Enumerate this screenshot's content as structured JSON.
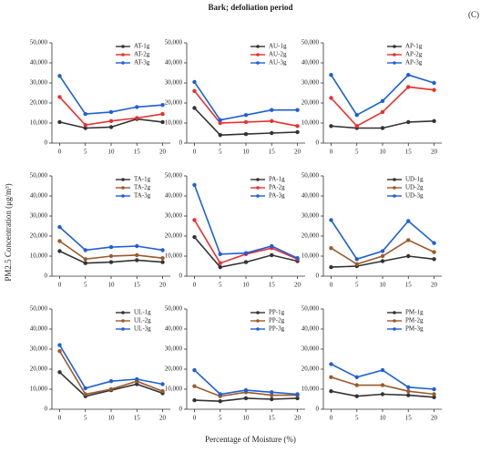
{
  "title": "Bark; defoliation period",
  "panel_label": "(C)",
  "y_label": "PM2.5 Concentration (μg/m³)",
  "x_label": "Percentage of Moisture (%)",
  "chart_data": [
    {
      "type": "line",
      "x": [
        0,
        5,
        10,
        15,
        20
      ],
      "xlim": [
        -1.5,
        21.5
      ],
      "xticks": [
        0,
        5,
        10,
        15,
        20
      ],
      "ylim": [
        0,
        50000
      ],
      "yticks": [
        0,
        {
          "value": 10000,
          "label": "10,000"
        },
        {
          "value": 20000,
          "label": "20,000"
        },
        {
          "value": 30000,
          "label": "30,000"
        },
        {
          "value": 40000,
          "label": "40,000"
        },
        {
          "value": 50000,
          "label": "50,000"
        }
      ],
      "series": [
        {
          "name": "AT-1g",
          "color": "#333333",
          "values": [
            10500,
            7500,
            8000,
            12000,
            10500
          ]
        },
        {
          "name": "AT-2g",
          "color": "#e8312f",
          "values": [
            23000,
            9000,
            11000,
            12500,
            14500
          ]
        },
        {
          "name": "AT-3g",
          "color": "#1f5fd6",
          "values": [
            33500,
            14500,
            15500,
            18000,
            19000
          ]
        }
      ]
    },
    {
      "type": "line",
      "x": [
        0,
        5,
        10,
        15,
        20
      ],
      "xlim": [
        -1.5,
        21.5
      ],
      "xticks": [
        0,
        5,
        10,
        15,
        20
      ],
      "ylim": [
        0,
        50000
      ],
      "yticks": [
        0,
        {
          "value": 10000,
          "label": "10,000"
        },
        {
          "value": 20000,
          "label": "20,000"
        },
        {
          "value": 30000,
          "label": "30,000"
        },
        {
          "value": 40000,
          "label": "40,000"
        },
        {
          "value": 50000,
          "label": "50,000"
        }
      ],
      "series": [
        {
          "name": "AU-1g",
          "color": "#333333",
          "values": [
            17500,
            4000,
            4500,
            5000,
            5500
          ]
        },
        {
          "name": "AU-2g",
          "color": "#e8312f",
          "values": [
            26000,
            10000,
            10500,
            11000,
            8500
          ]
        },
        {
          "name": "AU-3g",
          "color": "#1f5fd6",
          "values": [
            30500,
            11500,
            14000,
            16500,
            16500
          ]
        }
      ]
    },
    {
      "type": "line",
      "x": [
        0,
        5,
        10,
        15,
        20
      ],
      "xlim": [
        -1.5,
        21.5
      ],
      "xticks": [
        0,
        5,
        10,
        15,
        20
      ],
      "ylim": [
        0,
        50000
      ],
      "yticks": [
        0,
        {
          "value": 10000,
          "label": "10,000"
        },
        {
          "value": 20000,
          "label": "20,000"
        },
        {
          "value": 30000,
          "label": "30,000"
        },
        {
          "value": 40000,
          "label": "40,000"
        },
        {
          "value": 50000,
          "label": "50,000"
        }
      ],
      "series": [
        {
          "name": "AP-1g",
          "color": "#333333",
          "values": [
            8500,
            7500,
            7500,
            10500,
            11000
          ]
        },
        {
          "name": "AP-2g",
          "color": "#e8312f",
          "values": [
            22500,
            8500,
            15500,
            28000,
            26500
          ]
        },
        {
          "name": "AP-3g",
          "color": "#1f5fd6",
          "values": [
            34000,
            14000,
            21000,
            34000,
            30000
          ]
        }
      ]
    },
    {
      "type": "line",
      "x": [
        0,
        5,
        10,
        15,
        20
      ],
      "xlim": [
        -1.5,
        21.5
      ],
      "xticks": [
        0,
        5,
        10,
        15,
        20
      ],
      "ylim": [
        0,
        50000
      ],
      "yticks": [
        0,
        {
          "value": 10000,
          "label": "10,000"
        },
        {
          "value": 20000,
          "label": "20,000"
        },
        {
          "value": 30000,
          "label": "30,000"
        },
        {
          "value": 40000,
          "label": "40,000"
        },
        {
          "value": 50000,
          "label": "50,000"
        }
      ],
      "series": [
        {
          "name": "TA-1g",
          "color": "#333333",
          "values": [
            12500,
            6500,
            7000,
            8000,
            7000
          ]
        },
        {
          "name": "TA-2g",
          "color": "#9c5a2a",
          "values": [
            17500,
            8500,
            10000,
            10500,
            9000
          ]
        },
        {
          "name": "TA-3g",
          "color": "#1f5fd6",
          "values": [
            24500,
            13000,
            14500,
            15000,
            13000
          ]
        }
      ]
    },
    {
      "type": "line",
      "x": [
        0,
        5,
        10,
        15,
        20
      ],
      "xlim": [
        -1.5,
        21.5
      ],
      "xticks": [
        0,
        5,
        10,
        15,
        20
      ],
      "ylim": [
        0,
        50000
      ],
      "yticks": [
        0,
        {
          "value": 10000,
          "label": "10,000"
        },
        {
          "value": 20000,
          "label": "20,000"
        },
        {
          "value": 30000,
          "label": "30,000"
        },
        {
          "value": 40000,
          "label": "40,000"
        },
        {
          "value": 50000,
          "label": "50,000"
        }
      ],
      "series": [
        {
          "name": "PA-1g",
          "color": "#333333",
          "values": [
            19500,
            4500,
            7000,
            10500,
            7500
          ]
        },
        {
          "name": "PA-2g",
          "color": "#e8312f",
          "values": [
            28000,
            6500,
            11000,
            14000,
            8500
          ]
        },
        {
          "name": "PA-3g",
          "color": "#1f5fd6",
          "values": [
            45500,
            11000,
            11500,
            15000,
            9000
          ]
        }
      ]
    },
    {
      "type": "line",
      "x": [
        0,
        5,
        10,
        15,
        20
      ],
      "xlim": [
        -1.5,
        21.5
      ],
      "xticks": [
        0,
        5,
        10,
        15,
        20
      ],
      "ylim": [
        0,
        50000
      ],
      "yticks": [
        0,
        {
          "value": 10000,
          "label": "10,000"
        },
        {
          "value": 20000,
          "label": "20,000"
        },
        {
          "value": 30000,
          "label": "30,000"
        },
        {
          "value": 40000,
          "label": "40,000"
        },
        {
          "value": 50000,
          "label": "50,000"
        }
      ],
      "series": [
        {
          "name": "UD-1g",
          "color": "#333333",
          "values": [
            4500,
            5000,
            7500,
            10000,
            8500
          ]
        },
        {
          "name": "UD-2g",
          "color": "#9c5a2a",
          "values": [
            14000,
            6000,
            10000,
            18000,
            12000
          ]
        },
        {
          "name": "UD-3g",
          "color": "#1f5fd6",
          "values": [
            28000,
            8500,
            12500,
            27500,
            16500
          ]
        }
      ]
    },
    {
      "type": "line",
      "x": [
        0,
        5,
        10,
        15,
        20
      ],
      "xlim": [
        -1.5,
        21.5
      ],
      "xticks": [
        0,
        5,
        10,
        15,
        20
      ],
      "ylim": [
        0,
        50000
      ],
      "yticks": [
        0,
        {
          "value": 10000,
          "label": "10,000"
        },
        {
          "value": 20000,
          "label": "20,000"
        },
        {
          "value": 30000,
          "label": "30,000"
        },
        {
          "value": 40000,
          "label": "40,000"
        },
        {
          "value": 50000,
          "label": "50,000"
        }
      ],
      "series": [
        {
          "name": "UL-1g",
          "color": "#333333",
          "values": [
            18500,
            6500,
            9500,
            12500,
            8000
          ]
        },
        {
          "name": "UL-2g",
          "color": "#9c5a2a",
          "values": [
            29000,
            7500,
            10000,
            14000,
            9000
          ]
        },
        {
          "name": "UL-3g",
          "color": "#1f5fd6",
          "values": [
            32000,
            10500,
            14000,
            15000,
            12500
          ]
        }
      ]
    },
    {
      "type": "line",
      "x": [
        0,
        5,
        10,
        15,
        20
      ],
      "xlim": [
        -1.5,
        21.5
      ],
      "xticks": [
        0,
        5,
        10,
        15,
        20
      ],
      "ylim": [
        0,
        50000
      ],
      "yticks": [
        0,
        {
          "value": 10000,
          "label": "10,000"
        },
        {
          "value": 20000,
          "label": "20,000"
        },
        {
          "value": 30000,
          "label": "30,000"
        },
        {
          "value": 40000,
          "label": "40,000"
        },
        {
          "value": 50000,
          "label": "50,000"
        }
      ],
      "series": [
        {
          "name": "PP-1g",
          "color": "#333333",
          "values": [
            4500,
            4000,
            5500,
            5000,
            5500
          ]
        },
        {
          "name": "PP-2g",
          "color": "#9c5a2a",
          "values": [
            11500,
            6500,
            8500,
            7000,
            7000
          ]
        },
        {
          "name": "PP-3g",
          "color": "#1f5fd6",
          "values": [
            19500,
            7500,
            9500,
            8500,
            7500
          ]
        }
      ]
    },
    {
      "type": "line",
      "x": [
        0,
        5,
        10,
        15,
        20
      ],
      "xlim": [
        -1.5,
        21.5
      ],
      "xticks": [
        0,
        5,
        10,
        15,
        20
      ],
      "ylim": [
        0,
        50000
      ],
      "yticks": [
        0,
        {
          "value": 10000,
          "label": "10,000"
        },
        {
          "value": 20000,
          "label": "20,000"
        },
        {
          "value": 30000,
          "label": "30,000"
        },
        {
          "value": 40000,
          "label": "40,000"
        },
        {
          "value": 50000,
          "label": "50,000"
        }
      ],
      "series": [
        {
          "name": "PM-1g",
          "color": "#333333",
          "values": [
            9000,
            6500,
            7500,
            7000,
            6000
          ]
        },
        {
          "name": "PM-2g",
          "color": "#9c5a2a",
          "values": [
            16000,
            12000,
            12000,
            9000,
            7500
          ]
        },
        {
          "name": "PM-3g",
          "color": "#1f5fd6",
          "values": [
            22500,
            16000,
            19500,
            11000,
            10000
          ]
        }
      ]
    }
  ]
}
